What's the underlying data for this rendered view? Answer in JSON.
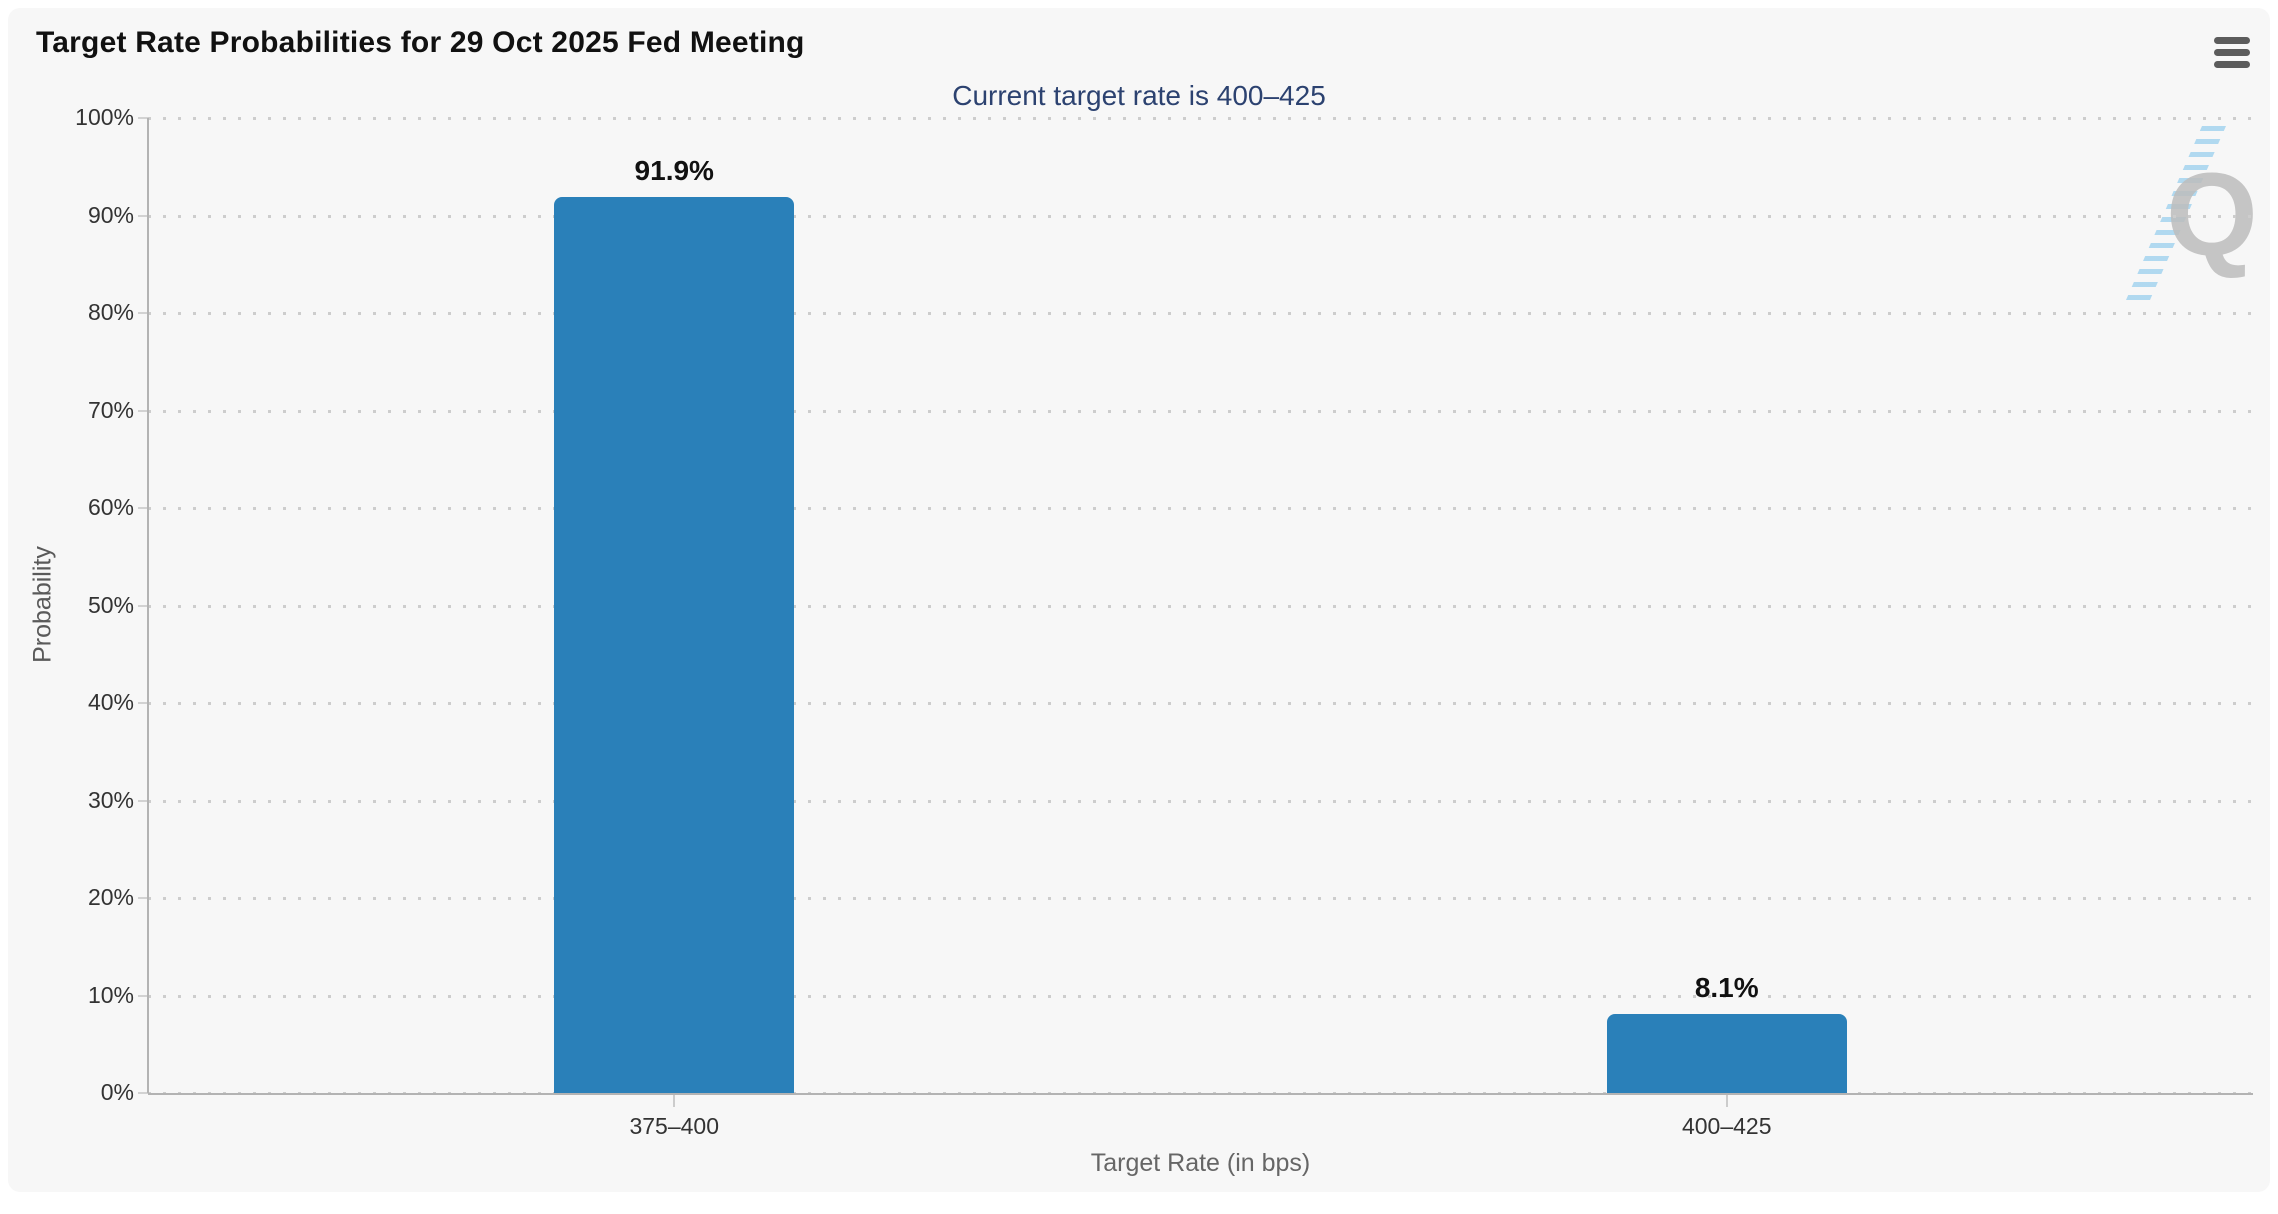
{
  "chart": {
    "watermark_letter": "Q",
    "menu_icon": "hamburger-icon"
  },
  "chart_data": {
    "type": "bar",
    "title": "Target Rate Probabilities for 29 Oct 2025 Fed Meeting",
    "subtitle": "Current target rate is 400–425",
    "categories": [
      "375–400",
      "400–425"
    ],
    "values": [
      91.9,
      8.1
    ],
    "data_labels": [
      "91.9%",
      "8.1%"
    ],
    "xlabel": "Target Rate (in bps)",
    "ylabel": "Probability",
    "ylim": [
      0,
      100
    ],
    "ytick_step": 10,
    "ytick_labels": [
      "0%",
      "10%",
      "20%",
      "30%",
      "40%",
      "50%",
      "60%",
      "70%",
      "80%",
      "90%",
      "100%"
    ],
    "grid": "horizontal-dotted",
    "legend": "none",
    "bar_color": "#2a80b9",
    "background_color": "#f7f7f7",
    "subtitle_color": "#2c4270"
  }
}
